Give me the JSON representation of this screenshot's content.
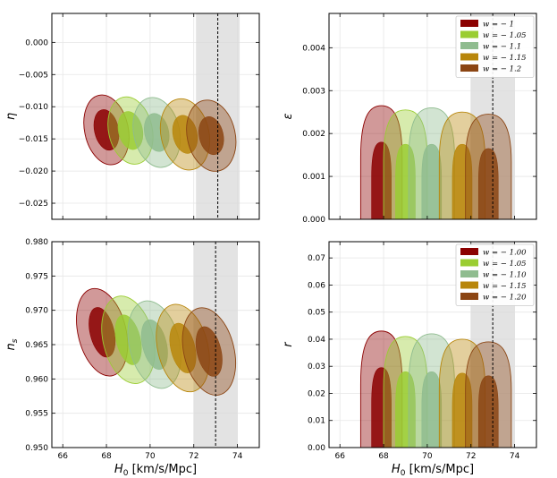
{
  "figure": {
    "shared_xlabel": "H0 [km/s/Mpc]",
    "band_color": "#d9d9d9",
    "series_colors": [
      "#8b0000",
      "#9acd32",
      "#8fbc8f",
      "#b8860b",
      "#8b4513"
    ]
  },
  "chart_data": [
    {
      "id": "eta",
      "type": "contour",
      "ylabel": "η",
      "xlabel": "",
      "xlim": [
        65.5,
        75.0
      ],
      "ylim": [
        -0.0275,
        0.0045
      ],
      "xticks": [
        66,
        68,
        70,
        72,
        74
      ],
      "xtick_labels": [],
      "yticks": [
        0.0,
        -0.005,
        -0.01,
        -0.015,
        -0.02,
        -0.025
      ],
      "ytick_labels": [
        "0.000",
        "−0.005",
        "−0.010",
        "−0.015",
        "−0.020",
        "−0.025"
      ],
      "band": [
        72.1,
        74.1
      ],
      "vline": 73.1,
      "legend": null,
      "series": [
        {
          "name": "w = −1",
          "cx": 68.0,
          "cy": -0.0136,
          "rx68": 0.55,
          "ry68": 0.0032,
          "rx95": 1.0,
          "ry95": 0.0055,
          "tilt": 0.35
        },
        {
          "name": "w = −1.05",
          "cx": 69.1,
          "cy": -0.0137,
          "rx68": 0.55,
          "ry68": 0.003,
          "rx95": 1.0,
          "ry95": 0.0053,
          "tilt": 0.35
        },
        {
          "name": "w = −1.1",
          "cx": 70.3,
          "cy": -0.014,
          "rx68": 0.55,
          "ry68": 0.003,
          "rx95": 1.05,
          "ry95": 0.0055,
          "tilt": 0.35
        },
        {
          "name": "w = −1.15",
          "cx": 71.6,
          "cy": -0.0143,
          "rx68": 0.55,
          "ry68": 0.003,
          "rx95": 1.1,
          "ry95": 0.0056,
          "tilt": 0.35
        },
        {
          "name": "w = −1.2",
          "cx": 72.8,
          "cy": -0.0145,
          "rx68": 0.55,
          "ry68": 0.003,
          "rx95": 1.1,
          "ry95": 0.0056,
          "tilt": 0.35
        }
      ]
    },
    {
      "id": "epsilon",
      "type": "contour",
      "ylabel": "ε",
      "xlabel": "",
      "xlim": [
        65.5,
        75.0
      ],
      "ylim": [
        0.0,
        0.0048
      ],
      "xticks": [
        66,
        68,
        70,
        72,
        74
      ],
      "xtick_labels": [],
      "yticks": [
        0.0,
        0.001,
        0.002,
        0.003,
        0.004
      ],
      "ytick_labels": [
        "0.000",
        "0.001",
        "0.002",
        "0.003",
        "0.004"
      ],
      "band": [
        72.0,
        74.0
      ],
      "vline": 73.0,
      "legend": [
        "w = − 1",
        "w = − 1.05",
        "w = − 1.1",
        "w = − 1.15",
        "w = − 1.2"
      ],
      "series": [
        {
          "name": "w = −1",
          "cx": 67.9,
          "peak68": 0.0018,
          "peak95": 0.00265,
          "hw68": 0.45,
          "hw95": 0.95
        },
        {
          "name": "w = −1.05",
          "cx": 69.0,
          "peak68": 0.00175,
          "peak95": 0.00255,
          "hw68": 0.45,
          "hw95": 1.0
        },
        {
          "name": "w = −1.1",
          "cx": 70.2,
          "peak68": 0.00175,
          "peak95": 0.0026,
          "hw68": 0.45,
          "hw95": 1.05
        },
        {
          "name": "w = −1.15",
          "cx": 71.6,
          "peak68": 0.00175,
          "peak95": 0.0025,
          "hw68": 0.45,
          "hw95": 1.05
        },
        {
          "name": "w = −1.2",
          "cx": 72.8,
          "peak68": 0.00165,
          "peak95": 0.00245,
          "hw68": 0.45,
          "hw95": 1.05
        }
      ]
    },
    {
      "id": "ns",
      "type": "contour",
      "ylabel": "n_s",
      "xlabel": "H0 [km/s/Mpc]",
      "xlim": [
        65.5,
        75.0
      ],
      "ylim": [
        0.95,
        0.98
      ],
      "xticks": [
        66,
        68,
        70,
        72,
        74
      ],
      "xtick_labels": [
        "66",
        "68",
        "70",
        "72",
        "74"
      ],
      "yticks": [
        0.95,
        0.955,
        0.96,
        0.965,
        0.97,
        0.975,
        0.98
      ],
      "ytick_labels": [
        "0.950",
        "0.955",
        "0.960",
        "0.965",
        "0.970",
        "0.975",
        "0.980"
      ],
      "band": [
        72.0,
        74.0
      ],
      "vline": 73.0,
      "legend": null,
      "series": [
        {
          "name": "w = −1.00",
          "cx": 67.8,
          "cy": 0.9668,
          "rx68": 0.55,
          "ry68": 0.0037,
          "rx95": 1.1,
          "ry95": 0.0065,
          "tilt": 0.4
        },
        {
          "name": "w = −1.05",
          "cx": 69.0,
          "cy": 0.9657,
          "rx68": 0.55,
          "ry68": 0.0037,
          "rx95": 1.15,
          "ry95": 0.0065,
          "tilt": 0.4
        },
        {
          "name": "w = −1.10",
          "cx": 70.2,
          "cy": 0.965,
          "rx68": 0.55,
          "ry68": 0.0037,
          "rx95": 1.15,
          "ry95": 0.0065,
          "tilt": 0.4
        },
        {
          "name": "w = −1.15",
          "cx": 71.5,
          "cy": 0.9645,
          "rx68": 0.55,
          "ry68": 0.0037,
          "rx95": 1.15,
          "ry95": 0.0065,
          "tilt": 0.4
        },
        {
          "name": "w = −1.20",
          "cx": 72.7,
          "cy": 0.964,
          "rx68": 0.55,
          "ry68": 0.0037,
          "rx95": 1.15,
          "ry95": 0.0065,
          "tilt": 0.4
        }
      ]
    },
    {
      "id": "r",
      "type": "contour",
      "ylabel": "r",
      "xlabel": "H0 [km/s/Mpc]",
      "xlim": [
        65.5,
        75.0
      ],
      "ylim": [
        0.0,
        0.076
      ],
      "xticks": [
        66,
        68,
        70,
        72,
        74
      ],
      "xtick_labels": [
        "66",
        "68",
        "70",
        "72",
        "74"
      ],
      "yticks": [
        0.0,
        0.01,
        0.02,
        0.03,
        0.04,
        0.05,
        0.06,
        0.07
      ],
      "ytick_labels": [
        "0.00",
        "0.01",
        "0.02",
        "0.03",
        "0.04",
        "0.05",
        "0.06",
        "0.07"
      ],
      "band": [
        72.0,
        74.0
      ],
      "vline": 73.0,
      "legend": [
        "w = − 1.00",
        "w = − 1.05",
        "w = − 1.10",
        "w = − 1.15",
        "w = − 1.20"
      ],
      "series": [
        {
          "name": "w = −1.00",
          "cx": 67.9,
          "peak68": 0.0295,
          "peak95": 0.043,
          "hw68": 0.45,
          "hw95": 0.95
        },
        {
          "name": "w = −1.05",
          "cx": 69.0,
          "peak68": 0.028,
          "peak95": 0.041,
          "hw68": 0.45,
          "hw95": 1.0
        },
        {
          "name": "w = −1.10",
          "cx": 70.2,
          "peak68": 0.028,
          "peak95": 0.042,
          "hw68": 0.45,
          "hw95": 1.05
        },
        {
          "name": "w = −1.15",
          "cx": 71.6,
          "peak68": 0.0275,
          "peak95": 0.04,
          "hw68": 0.45,
          "hw95": 1.05
        },
        {
          "name": "w = −1.20",
          "cx": 72.8,
          "peak68": 0.0265,
          "peak95": 0.039,
          "hw68": 0.45,
          "hw95": 1.05
        }
      ]
    }
  ]
}
